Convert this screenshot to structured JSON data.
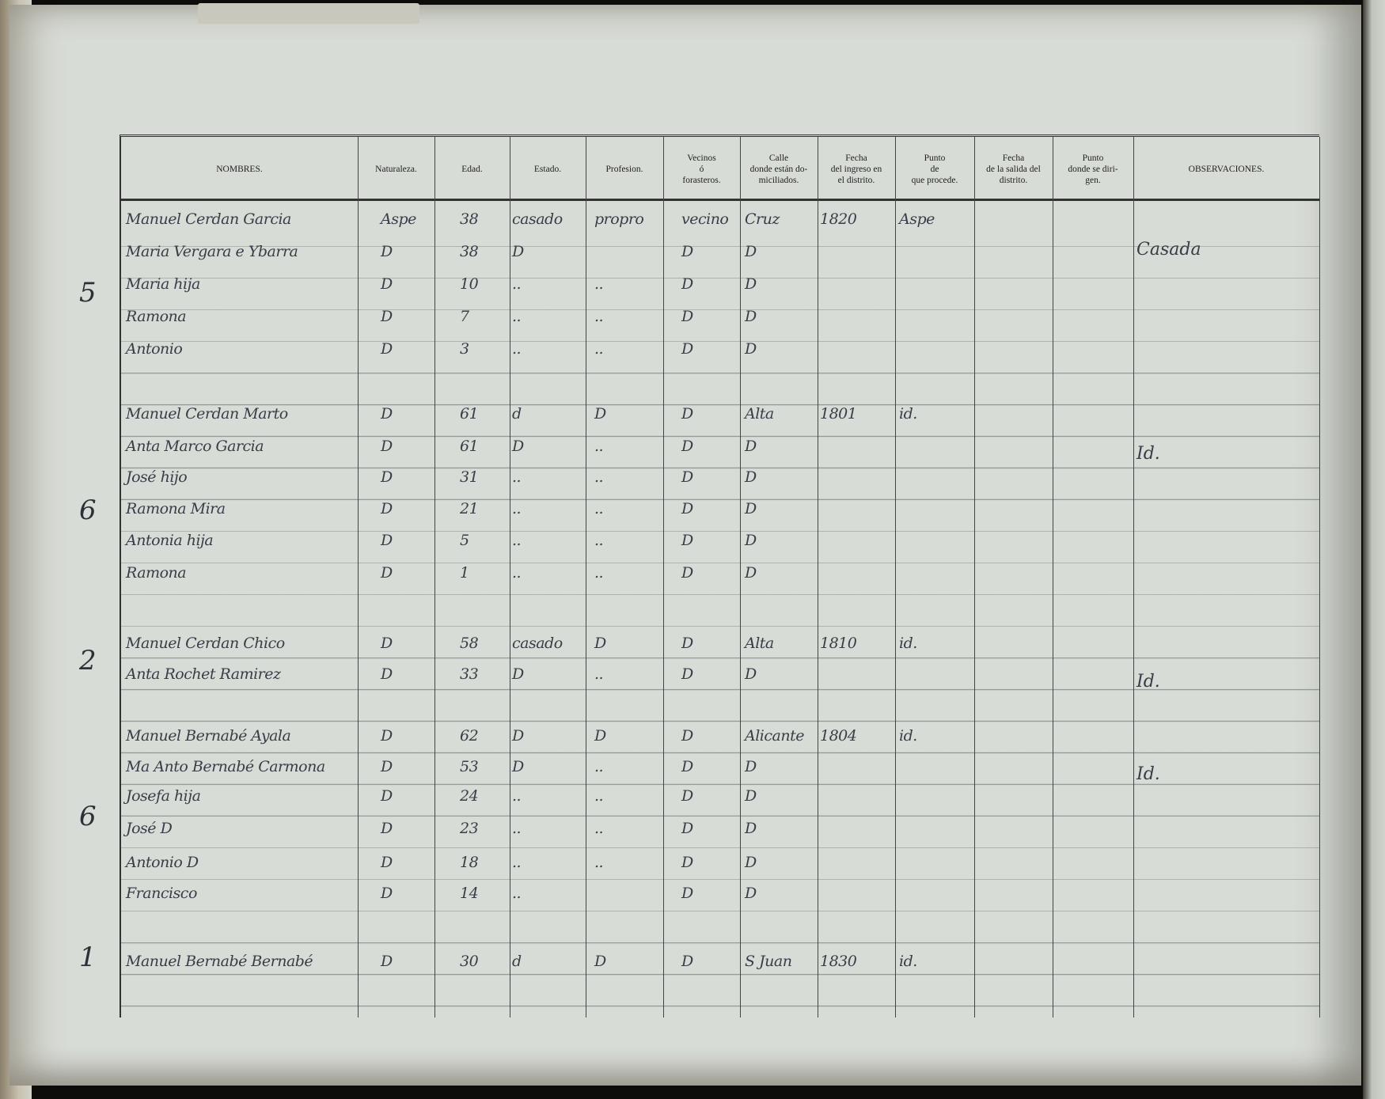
{
  "headers": {
    "nombres": "NOMBRES.",
    "naturaleza": "Naturaleza.",
    "edad": "Edad.",
    "estado": "Estado.",
    "profesion": "Profesion.",
    "vecinos": "Vecinos\nó\nforasteros.",
    "calle": "Calle\ndonde están do-\nmiciliados.",
    "fecha_ingreso": "Fecha\ndel ingreso en\nel distrito.",
    "punto_procede": "Punto\nde\nque procede.",
    "fecha_salida": "Fecha\nde la salida del\ndistrito.",
    "punto_dirigen": "Punto\ndonde se diri-\ngen.",
    "observaciones": "OBSERVACIONES."
  },
  "groups": [
    {
      "count": "5"
    },
    {
      "count": "6"
    },
    {
      "count": "2"
    },
    {
      "count": "6"
    },
    {
      "count": "1"
    }
  ],
  "rows": [
    {
      "nombre": "Manuel Cerdan Garcia",
      "naturaleza": "Aspe",
      "edad": "38",
      "estado": "casado",
      "profesion": "propro",
      "vecinos": "vecino",
      "calle": "Cruz",
      "fecha_ingreso": "1820",
      "punto": "Aspe",
      "obs": ""
    },
    {
      "nombre": "Maria Vergara e Ybarra",
      "naturaleza": "D",
      "edad": "38",
      "estado": "D",
      "profesion": "",
      "vecinos": "D",
      "calle": "D",
      "fecha_ingreso": "",
      "punto": "",
      "obs": "Casada"
    },
    {
      "nombre": "Maria hija",
      "naturaleza": "D",
      "edad": "10",
      "estado": "..",
      "profesion": "..",
      "vecinos": "D",
      "calle": "D",
      "fecha_ingreso": "",
      "punto": "",
      "obs": ""
    },
    {
      "nombre": "Ramona",
      "naturaleza": "D",
      "edad": "7",
      "estado": "..",
      "profesion": "..",
      "vecinos": "D",
      "calle": "D",
      "fecha_ingreso": "",
      "punto": "",
      "obs": ""
    },
    {
      "nombre": "Antonio",
      "naturaleza": "D",
      "edad": "3",
      "estado": "..",
      "profesion": "..",
      "vecinos": "D",
      "calle": "D",
      "fecha_ingreso": "",
      "punto": "",
      "obs": ""
    },
    {
      "nombre": "Manuel Cerdan Marto",
      "naturaleza": "D",
      "edad": "61",
      "estado": "d",
      "profesion": "D",
      "vecinos": "D",
      "calle": "Alta",
      "fecha_ingreso": "1801",
      "punto": "id.",
      "obs": ""
    },
    {
      "nombre": "Anta Marco Garcia",
      "naturaleza": "D",
      "edad": "61",
      "estado": "D",
      "profesion": "..",
      "vecinos": "D",
      "calle": "D",
      "fecha_ingreso": "",
      "punto": "",
      "obs": "Id."
    },
    {
      "nombre": "José hijo",
      "naturaleza": "D",
      "edad": "31",
      "estado": "..",
      "profesion": "..",
      "vecinos": "D",
      "calle": "D",
      "fecha_ingreso": "",
      "punto": "",
      "obs": ""
    },
    {
      "nombre": "Ramona Mira",
      "naturaleza": "D",
      "edad": "21",
      "estado": "..",
      "profesion": "..",
      "vecinos": "D",
      "calle": "D",
      "fecha_ingreso": "",
      "punto": "",
      "obs": ""
    },
    {
      "nombre": "Antonia hija",
      "naturaleza": "D",
      "edad": "5",
      "estado": "..",
      "profesion": "..",
      "vecinos": "D",
      "calle": "D",
      "fecha_ingreso": "",
      "punto": "",
      "obs": ""
    },
    {
      "nombre": "Ramona",
      "naturaleza": "D",
      "edad": "1",
      "estado": "..",
      "profesion": "..",
      "vecinos": "D",
      "calle": "D",
      "fecha_ingreso": "",
      "punto": "",
      "obs": ""
    },
    {
      "nombre": "Manuel Cerdan Chico",
      "naturaleza": "D",
      "edad": "58",
      "estado": "casado",
      "profesion": "D",
      "vecinos": "D",
      "calle": "Alta",
      "fecha_ingreso": "1810",
      "punto": "id.",
      "obs": ""
    },
    {
      "nombre": "Anta Rochet Ramirez",
      "naturaleza": "D",
      "edad": "33",
      "estado": "D",
      "profesion": "..",
      "vecinos": "D",
      "calle": "D",
      "fecha_ingreso": "",
      "punto": "",
      "obs": "Id."
    },
    {
      "nombre": "Manuel Bernabé Ayala",
      "naturaleza": "D",
      "edad": "62",
      "estado": "D",
      "profesion": "D",
      "vecinos": "D",
      "calle": "Alicante",
      "fecha_ingreso": "1804",
      "punto": "id.",
      "obs": ""
    },
    {
      "nombre": "Ma Anto Bernabé Carmona",
      "naturaleza": "D",
      "edad": "53",
      "estado": "D",
      "profesion": "..",
      "vecinos": "D",
      "calle": "D",
      "fecha_ingreso": "",
      "punto": "",
      "obs": "Id."
    },
    {
      "nombre": "Josefa hija",
      "naturaleza": "D",
      "edad": "24",
      "estado": "..",
      "profesion": "..",
      "vecinos": "D",
      "calle": "D",
      "fecha_ingreso": "",
      "punto": "",
      "obs": ""
    },
    {
      "nombre": "José D",
      "naturaleza": "D",
      "edad": "23",
      "estado": "..",
      "profesion": "..",
      "vecinos": "D",
      "calle": "D",
      "fecha_ingreso": "",
      "punto": "",
      "obs": ""
    },
    {
      "nombre": "Antonio D",
      "naturaleza": "D",
      "edad": "18",
      "estado": "..",
      "profesion": "..",
      "vecinos": "D",
      "calle": "D",
      "fecha_ingreso": "",
      "punto": "",
      "obs": ""
    },
    {
      "nombre": "Francisco",
      "naturaleza": "D",
      "edad": "14",
      "estado": "..",
      "profesion": "",
      "vecinos": "D",
      "calle": "D",
      "fecha_ingreso": "",
      "punto": "",
      "obs": ""
    },
    {
      "nombre": "Manuel Bernabé Bernabé",
      "naturaleza": "D",
      "edad": "30",
      "estado": "d",
      "profesion": "D",
      "vecinos": "D",
      "calle": "S Juan",
      "fecha_ingreso": "1830",
      "punto": "id.",
      "obs": ""
    }
  ]
}
